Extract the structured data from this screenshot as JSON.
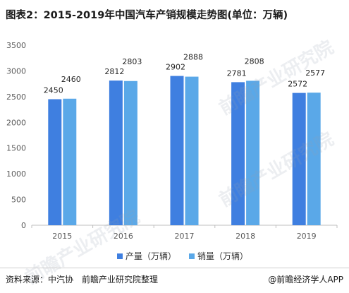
{
  "title": "图表2：2015-2019年中国汽车产销规模走势图(单位：万辆)",
  "colors": {
    "production": "#3f7fe0",
    "sales": "#5aa8e8",
    "axis": "#bfbfbf"
  },
  "chart_data": {
    "type": "bar",
    "title": "图表2：2015-2019年中国汽车产销规模走势图(单位：万辆)",
    "categories": [
      "2015",
      "2016",
      "2017",
      "2018",
      "2019"
    ],
    "series": [
      {
        "name": "产量（万辆）",
        "values": [
          2450,
          2812,
          2902,
          2781,
          2572
        ]
      },
      {
        "name": "销量（万辆）",
        "values": [
          2460,
          2803,
          2888,
          2808,
          2577
        ]
      }
    ],
    "yticks": [
      0,
      500,
      1000,
      1500,
      2000,
      2500,
      3000,
      3500
    ],
    "ylim": [
      0,
      3500
    ],
    "xlabel": "",
    "ylabel": "",
    "grid": false,
    "legend_position": "bottom"
  },
  "footer": {
    "source": "资料来源：中汽协　前瞻产业研究院整理",
    "brand": "@前瞻经济学人APP"
  },
  "watermarks": [
    "前瞻产业研究院",
    "前瞻产业研究院",
    "前瞻产业研究院"
  ]
}
